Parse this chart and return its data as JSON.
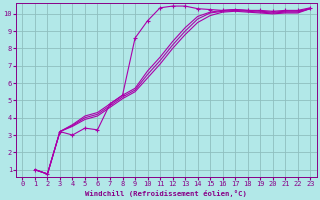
{
  "xlabel": "Windchill (Refroidissement éolien,°C)",
  "bg_color": "#b2e8e8",
  "grid_color": "#8fbfbf",
  "line_color": "#aa00aa",
  "xlim": [
    -0.5,
    23.5
  ],
  "ylim": [
    0.6,
    10.6
  ],
  "yticks": [
    1,
    2,
    3,
    4,
    5,
    6,
    7,
    8,
    9,
    10
  ],
  "xticks": [
    0,
    1,
    2,
    3,
    4,
    5,
    6,
    7,
    8,
    9,
    10,
    11,
    12,
    13,
    14,
    15,
    16,
    17,
    18,
    19,
    20,
    21,
    22,
    23
  ],
  "series_marked": {
    "x": [
      1,
      2,
      3,
      4,
      5,
      6,
      7,
      8,
      9,
      10,
      11,
      12,
      13,
      14,
      15,
      16,
      17,
      18,
      19,
      20,
      21,
      22,
      23
    ],
    "y": [
      1.0,
      0.75,
      3.2,
      3.0,
      3.4,
      3.3,
      4.8,
      5.3,
      8.6,
      9.6,
      10.35,
      10.45,
      10.45,
      10.3,
      10.25,
      10.2,
      10.25,
      10.2,
      10.2,
      10.15,
      10.2,
      10.2,
      10.35
    ]
  },
  "series_lines": [
    {
      "x": [
        1,
        2,
        3,
        4,
        5,
        6,
        7,
        8,
        9,
        10,
        11,
        12,
        13,
        14,
        15,
        16,
        17,
        18,
        19,
        20,
        21,
        22,
        23
      ],
      "y": [
        1.0,
        0.75,
        3.2,
        3.5,
        3.9,
        4.1,
        4.6,
        5.1,
        5.5,
        6.3,
        7.1,
        8.0,
        8.8,
        9.5,
        9.9,
        10.1,
        10.15,
        10.1,
        10.05,
        10.0,
        10.05,
        10.05,
        10.3
      ]
    },
    {
      "x": [
        1,
        2,
        3,
        4,
        5,
        6,
        7,
        8,
        9,
        10,
        11,
        12,
        13,
        14,
        15,
        16,
        17,
        18,
        19,
        20,
        21,
        22,
        23
      ],
      "y": [
        1.0,
        0.75,
        3.2,
        3.55,
        4.0,
        4.2,
        4.7,
        5.2,
        5.6,
        6.5,
        7.3,
        8.2,
        9.0,
        9.7,
        10.05,
        10.15,
        10.2,
        10.15,
        10.1,
        10.05,
        10.1,
        10.1,
        10.3
      ]
    },
    {
      "x": [
        1,
        2,
        3,
        4,
        5,
        6,
        7,
        8,
        9,
        10,
        11,
        12,
        13,
        14,
        15,
        16,
        17,
        18,
        19,
        20,
        21,
        22,
        23
      ],
      "y": [
        1.0,
        0.75,
        3.2,
        3.6,
        4.1,
        4.3,
        4.8,
        5.3,
        5.7,
        6.7,
        7.5,
        8.4,
        9.2,
        9.85,
        10.1,
        10.2,
        10.25,
        10.2,
        10.15,
        10.1,
        10.15,
        10.15,
        10.3
      ]
    }
  ]
}
